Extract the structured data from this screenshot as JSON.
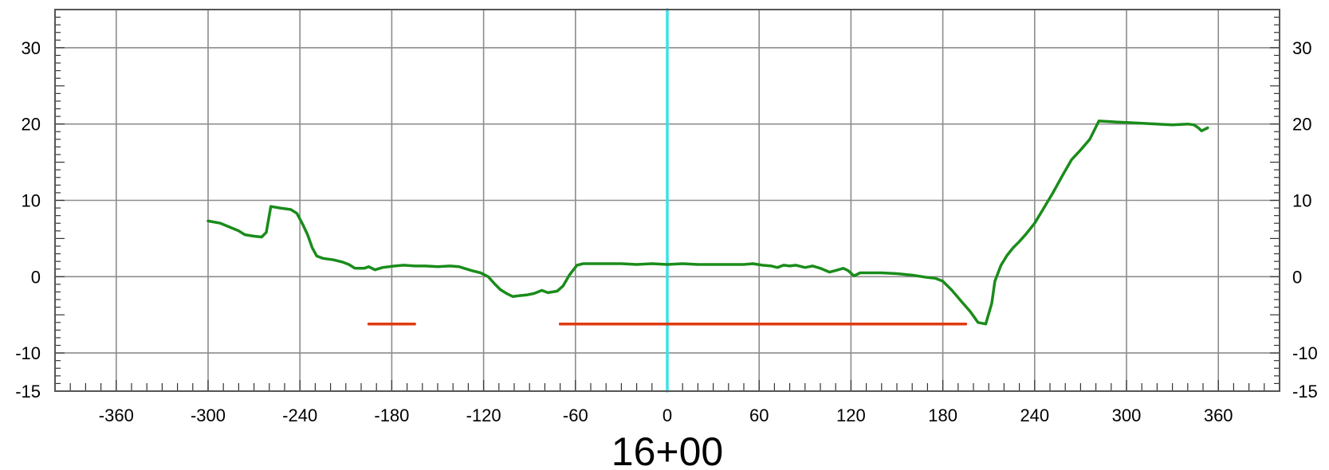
{
  "chart_data": {
    "type": "line",
    "title": "16+00",
    "xlabel": "",
    "ylabel": "",
    "xlim": [
      -400,
      400
    ],
    "ylim": [
      -15,
      35
    ],
    "x_ticks": [
      -360,
      -300,
      -240,
      -180,
      -120,
      -60,
      0,
      60,
      120,
      180,
      240,
      300,
      360
    ],
    "y_ticks": [
      -15,
      -10,
      0,
      10,
      20,
      30
    ],
    "grid": true,
    "colors": {
      "ground": "#1a8c1a",
      "template": "#e03a10",
      "centerline": "#3de0e8",
      "grid": "#8c8c8c"
    },
    "series": [
      {
        "role": "ground-profile",
        "points": [
          [
            -300,
            7.3
          ],
          [
            -292,
            7.0
          ],
          [
            -286,
            6.5
          ],
          [
            -280,
            6.0
          ],
          [
            -276,
            5.5
          ],
          [
            -270,
            5.3
          ],
          [
            -265,
            5.2
          ],
          [
            -262,
            5.8
          ],
          [
            -259,
            9.2
          ],
          [
            -253,
            9.0
          ],
          [
            -246,
            8.8
          ],
          [
            -242,
            8.3
          ],
          [
            -238,
            6.8
          ],
          [
            -235,
            5.5
          ],
          [
            -232,
            3.8
          ],
          [
            -229,
            2.7
          ],
          [
            -225,
            2.4
          ],
          [
            -218,
            2.2
          ],
          [
            -212,
            1.9
          ],
          [
            -208,
            1.6
          ],
          [
            -204,
            1.1
          ],
          [
            -198,
            1.1
          ],
          [
            -195,
            1.3
          ],
          [
            -191,
            0.9
          ],
          [
            -186,
            1.2
          ],
          [
            -178,
            1.4
          ],
          [
            -172,
            1.5
          ],
          [
            -165,
            1.4
          ],
          [
            -158,
            1.4
          ],
          [
            -150,
            1.3
          ],
          [
            -142,
            1.4
          ],
          [
            -136,
            1.3
          ],
          [
            -128,
            0.8
          ],
          [
            -122,
            0.5
          ],
          [
            -117,
            0.0
          ],
          [
            -113,
            -0.9
          ],
          [
            -109,
            -1.7
          ],
          [
            -105,
            -2.2
          ],
          [
            -101,
            -2.6
          ],
          [
            -97,
            -2.5
          ],
          [
            -92,
            -2.4
          ],
          [
            -87,
            -2.2
          ],
          [
            -82,
            -1.8
          ],
          [
            -78,
            -2.1
          ],
          [
            -72,
            -1.9
          ],
          [
            -68,
            -1.2
          ],
          [
            -64,
            0.2
          ],
          [
            -59,
            1.5
          ],
          [
            -55,
            1.7
          ],
          [
            -48,
            1.7
          ],
          [
            -40,
            1.7
          ],
          [
            -30,
            1.7
          ],
          [
            -20,
            1.6
          ],
          [
            -10,
            1.7
          ],
          [
            0,
            1.6
          ],
          [
            10,
            1.7
          ],
          [
            20,
            1.6
          ],
          [
            30,
            1.6
          ],
          [
            40,
            1.6
          ],
          [
            50,
            1.6
          ],
          [
            56,
            1.7
          ],
          [
            62,
            1.5
          ],
          [
            68,
            1.4
          ],
          [
            72,
            1.2
          ],
          [
            76,
            1.5
          ],
          [
            80,
            1.4
          ],
          [
            84,
            1.5
          ],
          [
            90,
            1.2
          ],
          [
            95,
            1.4
          ],
          [
            100,
            1.1
          ],
          [
            106,
            0.6
          ],
          [
            110,
            0.8
          ],
          [
            115,
            1.1
          ],
          [
            118,
            0.8
          ],
          [
            122,
            0.1
          ],
          [
            126,
            0.5
          ],
          [
            132,
            0.5
          ],
          [
            140,
            0.5
          ],
          [
            150,
            0.4
          ],
          [
            160,
            0.2
          ],
          [
            170,
            -0.1
          ],
          [
            175,
            -0.2
          ],
          [
            180,
            -0.6
          ],
          [
            186,
            -1.8
          ],
          [
            192,
            -3.2
          ],
          [
            198,
            -4.6
          ],
          [
            203,
            -6.0
          ],
          [
            208,
            -6.2
          ],
          [
            212,
            -3.5
          ],
          [
            214,
            -0.6
          ],
          [
            218,
            1.5
          ],
          [
            222,
            2.8
          ],
          [
            226,
            3.8
          ],
          [
            230,
            4.6
          ],
          [
            234,
            5.5
          ],
          [
            240,
            7.0
          ],
          [
            246,
            9.0
          ],
          [
            252,
            11.0
          ],
          [
            258,
            13.2
          ],
          [
            264,
            15.3
          ],
          [
            270,
            16.6
          ],
          [
            276,
            18.0
          ],
          [
            282,
            20.4
          ],
          [
            290,
            20.3
          ],
          [
            300,
            20.2
          ],
          [
            310,
            20.1
          ],
          [
            320,
            20.0
          ],
          [
            330,
            19.9
          ],
          [
            340,
            20.0
          ],
          [
            344,
            19.9
          ],
          [
            347,
            19.5
          ],
          [
            349,
            19.1
          ],
          [
            353,
            19.5
          ]
        ]
      },
      {
        "role": "template-left",
        "points": [
          [
            -195,
            -6.2
          ],
          [
            -165,
            -6.2
          ]
        ]
      },
      {
        "role": "template-right",
        "points": [
          [
            -70,
            -6.2
          ],
          [
            195,
            -6.2
          ]
        ]
      },
      {
        "role": "centerline",
        "points": [
          [
            0,
            -15
          ],
          [
            0,
            35
          ]
        ]
      }
    ]
  }
}
